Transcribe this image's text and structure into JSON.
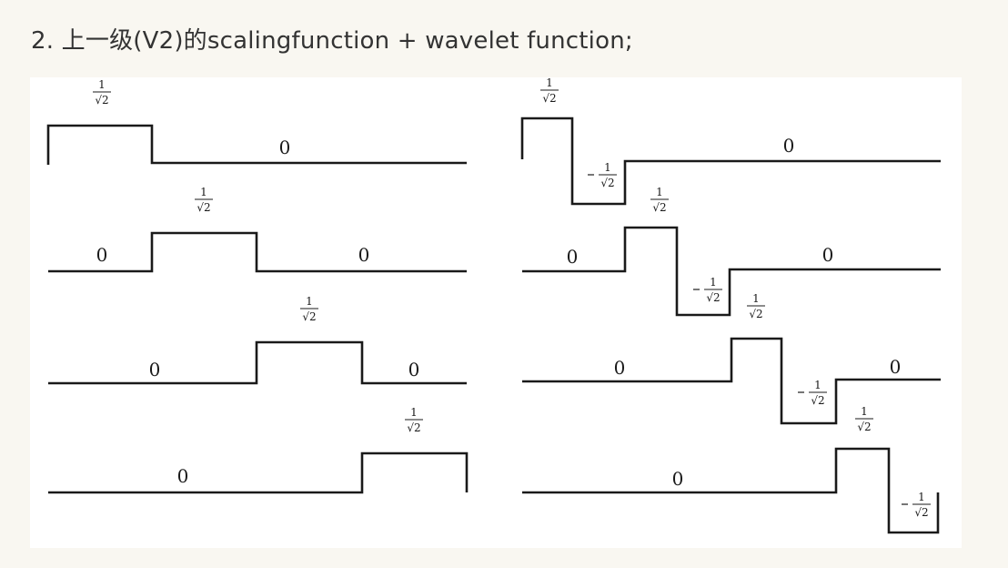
{
  "heading": "2. 上一级(V2)的scalingfunction + wavelet function;",
  "figure": {
    "columns": [
      {
        "rows": [
          "1/√2 on first quarter, 0 elsewhere",
          "",
          "",
          ""
        ]
      }
    ],
    "labels": {
      "zero": "0",
      "one_over_sqrt2": "1/√2",
      "neg_one_over_sqrt2": "-1/√2"
    }
  },
  "colors": {
    "page": "#f9f7f1",
    "figure": "#ffffff",
    "line": "#1a1a1a",
    "text": "#333333"
  }
}
